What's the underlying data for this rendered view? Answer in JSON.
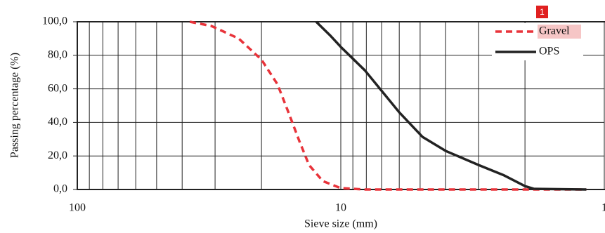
{
  "chart_data": {
    "type": "line",
    "x_label": "Sieve size (mm)",
    "y_label": "Passing percentage (%)",
    "annotation": "1",
    "log_x": true,
    "grid": true,
    "legend": "upper right",
    "xlim": [
      100,
      1
    ],
    "xticks": [
      100,
      10,
      1
    ],
    "xgrid": [
      90,
      80,
      70,
      60,
      50,
      40,
      30,
      20,
      9,
      8,
      7,
      6,
      5,
      4,
      3,
      2
    ],
    "ylim": [
      0,
      100
    ],
    "yticks": [
      {
        "value": 0,
        "label": "0,0"
      },
      {
        "value": 20,
        "label": "20,0"
      },
      {
        "value": 40,
        "label": "40,0"
      },
      {
        "value": 60,
        "label": "60,0"
      },
      {
        "value": 80,
        "label": "80,0"
      },
      {
        "value": 100,
        "label": "100,0"
      }
    ],
    "series": [
      {
        "name": "Gravel",
        "color": "#e8333a",
        "dashed": true,
        "x": [
          37.4,
          31,
          24.4,
          20,
          17.4,
          15.8,
          14.4,
          13.2,
          11.7,
          10,
          8.1,
          1.17
        ],
        "values": [
          100,
          97.5,
          90,
          77.4,
          62.8,
          46,
          29.3,
          14.6,
          5,
          0.8,
          0,
          0
        ]
      },
      {
        "name": "OPS",
        "color": "#222222",
        "dashed": false,
        "x": [
          12.4,
          11,
          10,
          8.1,
          6,
          4.9,
          4,
          3,
          2.4,
          2,
          1.85,
          1.17
        ],
        "values": [
          100,
          92,
          85,
          71,
          46,
          31.4,
          23,
          14.6,
          8.4,
          2,
          0.4,
          0
        ]
      }
    ]
  }
}
